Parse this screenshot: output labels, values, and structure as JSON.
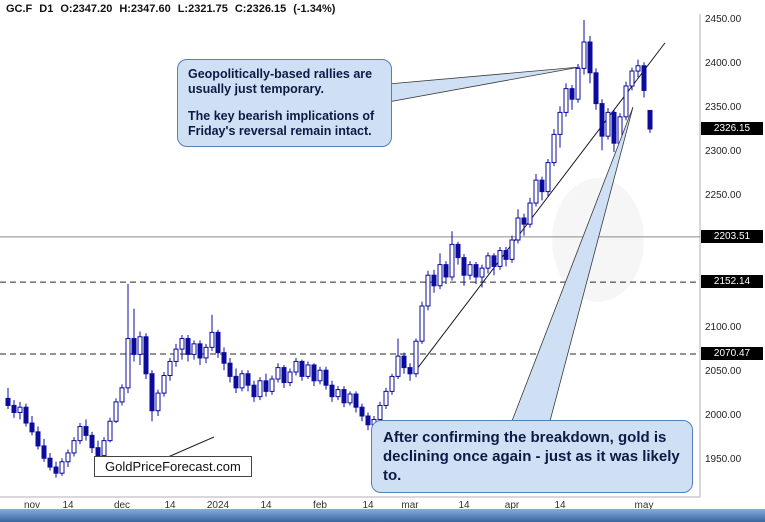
{
  "header": {
    "symbol": "GC.F",
    "timeframe": "D1",
    "open": "O:2347.20",
    "high": "H:2347.60",
    "low": "L:2321.75",
    "close": "C:2326.15",
    "change": "(-1.34%)"
  },
  "annotations": {
    "top_note_para1": "Geopolitically-based rallies are usually just temporary.",
    "top_note_para2": "The key bearish implications of Friday's reversal remain intact.",
    "bottom_note": "After confirming the breakdown, gold is declining once again - just as it was likely to.",
    "site_label": "GoldPriceForecast.com"
  },
  "colors": {
    "candle": "#0c0c9c",
    "callout_fill": "#cfe0f5",
    "callout_border": "#4f81bd",
    "badge_bg": "#000000",
    "badge_text": "#ffffff",
    "level_solid": "#8a8a8a",
    "level_dashed": "#2a2a2a",
    "bottom_bar_top": "#86acdd",
    "bottom_bar_bottom": "#39669f"
  },
  "chart_data": {
    "type": "candlestick",
    "title": "GC.F D1 gold futures daily chart",
    "current_price": 2326.15,
    "change_pct": -1.34,
    "ylim": [
      1929,
      2473
    ],
    "y_ticks": [
      2450,
      2400,
      2350,
      2300,
      2250,
      2100,
      2050,
      2000,
      1950
    ],
    "levels": [
      {
        "label": "2326.15",
        "value": 2326.15,
        "line": "none"
      },
      {
        "label": "2203.51",
        "value": 2203.51,
        "line": "solid"
      },
      {
        "label": "2152.14",
        "value": 2152.14,
        "line": "dashed"
      },
      {
        "label": "2070.47",
        "value": 2070.47,
        "line": "dashed"
      }
    ],
    "x_ticks": [
      {
        "label": "nov",
        "index": 4
      },
      {
        "label": "14",
        "index": 10
      },
      {
        "label": "dec",
        "index": 19
      },
      {
        "label": "14",
        "index": 27
      },
      {
        "label": "2024",
        "index": 35
      },
      {
        "label": "14",
        "index": 43
      },
      {
        "label": "feb",
        "index": 52
      },
      {
        "label": "14",
        "index": 60
      },
      {
        "label": "mar",
        "index": 67
      },
      {
        "label": "14",
        "index": 76
      },
      {
        "label": "apr",
        "index": 84
      },
      {
        "label": "14",
        "index": 92
      },
      {
        "label": "may",
        "index": 106
      }
    ],
    "trendline": {
      "from_index": 68,
      "from_price": 2052,
      "to_index": 109.5,
      "to_price": 2424
    },
    "candles": [
      [
        2020,
        2032,
        2008,
        2012
      ],
      [
        2012,
        2018,
        1998,
        2004
      ],
      [
        2004,
        2016,
        1996,
        2010
      ],
      [
        2010,
        2014,
        1988,
        1992
      ],
      [
        1992,
        2000,
        1978,
        1982
      ],
      [
        1982,
        1988,
        1962,
        1966
      ],
      [
        1966,
        1974,
        1948,
        1952
      ],
      [
        1952,
        1958,
        1938,
        1942
      ],
      [
        1942,
        1948,
        1930,
        1935
      ],
      [
        1935,
        1952,
        1932,
        1948
      ],
      [
        1948,
        1962,
        1942,
        1958
      ],
      [
        1958,
        1976,
        1954,
        1972
      ],
      [
        1972,
        1992,
        1968,
        1988
      ],
      [
        1988,
        1996,
        1972,
        1978
      ],
      [
        1978,
        1982,
        1958,
        1964
      ],
      [
        1964,
        1972,
        1948,
        1955
      ],
      [
        1955,
        1976,
        1952,
        1972
      ],
      [
        1972,
        1998,
        1970,
        1994
      ],
      [
        1994,
        2020,
        1992,
        2016
      ],
      [
        2016,
        2036,
        2012,
        2032
      ],
      [
        2032,
        2150,
        2026,
        2088
      ],
      [
        2088,
        2122,
        2062,
        2070
      ],
      [
        2070,
        2096,
        2058,
        2090
      ],
      [
        2090,
        2094,
        2042,
        2048
      ],
      [
        2048,
        2052,
        1994,
        2006
      ],
      [
        2006,
        2030,
        2000,
        2026
      ],
      [
        2026,
        2050,
        2022,
        2046
      ],
      [
        2046,
        2066,
        2040,
        2062
      ],
      [
        2062,
        2082,
        2056,
        2076
      ],
      [
        2076,
        2092,
        2064,
        2088
      ],
      [
        2088,
        2092,
        2062,
        2070
      ],
      [
        2070,
        2086,
        2064,
        2082
      ],
      [
        2082,
        2086,
        2058,
        2066
      ],
      [
        2066,
        2082,
        2060,
        2078
      ],
      [
        2078,
        2115,
        2074,
        2095
      ],
      [
        2095,
        2098,
        2066,
        2072
      ],
      [
        2072,
        2078,
        2052,
        2060
      ],
      [
        2060,
        2066,
        2038,
        2045
      ],
      [
        2045,
        2054,
        2026,
        2032
      ],
      [
        2032,
        2052,
        2028,
        2048
      ],
      [
        2048,
        2052,
        2028,
        2035
      ],
      [
        2035,
        2040,
        2016,
        2022
      ],
      [
        2022,
        2044,
        2018,
        2040
      ],
      [
        2040,
        2048,
        2022,
        2028
      ],
      [
        2028,
        2046,
        2024,
        2042
      ],
      [
        2042,
        2060,
        2038,
        2055
      ],
      [
        2055,
        2058,
        2032,
        2038
      ],
      [
        2038,
        2054,
        2034,
        2050
      ],
      [
        2050,
        2066,
        2046,
        2062
      ],
      [
        2062,
        2064,
        2040,
        2045
      ],
      [
        2045,
        2062,
        2042,
        2058
      ],
      [
        2058,
        2060,
        2034,
        2040
      ],
      [
        2040,
        2056,
        2036,
        2052
      ],
      [
        2052,
        2056,
        2030,
        2035
      ],
      [
        2035,
        2040,
        2016,
        2022
      ],
      [
        2022,
        2034,
        2018,
        2030
      ],
      [
        2030,
        2034,
        2010,
        2015
      ],
      [
        2015,
        2028,
        2012,
        2025
      ],
      [
        2025,
        2028,
        2004,
        2010
      ],
      [
        2010,
        2014,
        1994,
        2000
      ],
      [
        2000,
        2004,
        1984,
        1990
      ],
      [
        1990,
        2000,
        1982,
        1996
      ],
      [
        1996,
        2016,
        1992,
        2012
      ],
      [
        2012,
        2032,
        2008,
        2028
      ],
      [
        2028,
        2048,
        2024,
        2045
      ],
      [
        2045,
        2088,
        2042,
        2068
      ],
      [
        2068,
        2072,
        2048,
        2055
      ],
      [
        2055,
        2060,
        2040,
        2048
      ],
      [
        2048,
        2088,
        2044,
        2085
      ],
      [
        2085,
        2130,
        2082,
        2125
      ],
      [
        2125,
        2165,
        2120,
        2160
      ],
      [
        2160,
        2166,
        2140,
        2148
      ],
      [
        2148,
        2185,
        2144,
        2172
      ],
      [
        2172,
        2176,
        2150,
        2158
      ],
      [
        2158,
        2210,
        2154,
        2195
      ],
      [
        2195,
        2198,
        2172,
        2180
      ],
      [
        2180,
        2184,
        2148,
        2160
      ],
      [
        2160,
        2176,
        2155,
        2172
      ],
      [
        2172,
        2175,
        2150,
        2158
      ],
      [
        2158,
        2172,
        2146,
        2168
      ],
      [
        2168,
        2186,
        2162,
        2182
      ],
      [
        2182,
        2185,
        2160,
        2170
      ],
      [
        2170,
        2192,
        2166,
        2188
      ],
      [
        2188,
        2192,
        2170,
        2178
      ],
      [
        2178,
        2205,
        2174,
        2200
      ],
      [
        2200,
        2235,
        2196,
        2225
      ],
      [
        2225,
        2230,
        2205,
        2218
      ],
      [
        2218,
        2248,
        2214,
        2242
      ],
      [
        2242,
        2275,
        2238,
        2268
      ],
      [
        2268,
        2272,
        2245,
        2255
      ],
      [
        2255,
        2292,
        2250,
        2288
      ],
      [
        2288,
        2326,
        2284,
        2320
      ],
      [
        2320,
        2352,
        2305,
        2345
      ],
      [
        2345,
        2378,
        2340,
        2372
      ],
      [
        2372,
        2376,
        2348,
        2360
      ],
      [
        2360,
        2400,
        2356,
        2395
      ],
      [
        2395,
        2450,
        2388,
        2425
      ],
      [
        2425,
        2432,
        2378,
        2390
      ],
      [
        2390,
        2395,
        2348,
        2355
      ],
      [
        2355,
        2360,
        2302,
        2318
      ],
      [
        2318,
        2350,
        2314,
        2345
      ],
      [
        2345,
        2348,
        2300,
        2310
      ],
      [
        2310,
        2344,
        2306,
        2340
      ],
      [
        2340,
        2380,
        2336,
        2375
      ],
      [
        2375,
        2396,
        2370,
        2392
      ],
      [
        2392,
        2405,
        2385,
        2398
      ],
      [
        2398,
        2402,
        2362,
        2370
      ],
      [
        2347.2,
        2347.6,
        2321.75,
        2326.15
      ]
    ]
  }
}
